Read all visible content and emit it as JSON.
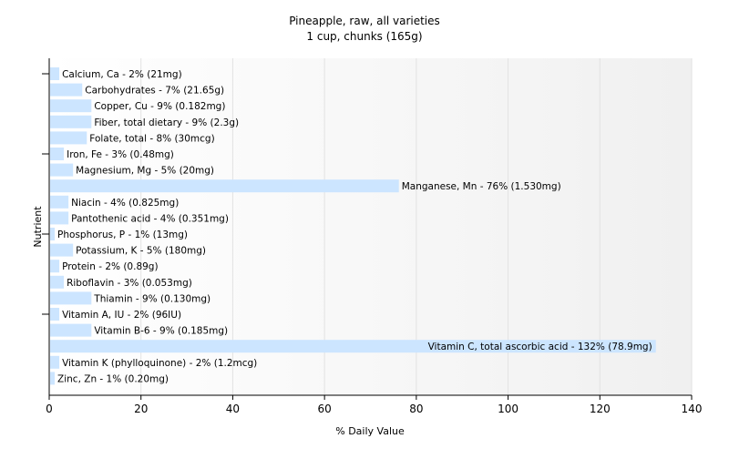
{
  "chart_data": {
    "type": "bar",
    "orientation": "horizontal",
    "title": "Pineapple, raw, all varieties",
    "subtitle": "1 cup, chunks (165g)",
    "xlabel": "% Daily Value",
    "ylabel": "Nutrient",
    "xlim": [
      0,
      140
    ],
    "xticks": [
      0,
      20,
      40,
      60,
      80,
      100,
      120,
      140
    ],
    "grid": "vertical",
    "bar_color": "#cce5ff",
    "categories": [
      "Calcium, Ca",
      "Carbohydrates",
      "Copper, Cu",
      "Fiber, total dietary",
      "Folate, total",
      "Iron, Fe",
      "Magnesium, Mg",
      "Manganese, Mn",
      "Niacin",
      "Pantothenic acid",
      "Phosphorus, P",
      "Potassium, K",
      "Protein",
      "Riboflavin",
      "Thiamin",
      "Vitamin A, IU",
      "Vitamin B-6",
      "Vitamin C, total ascorbic acid",
      "Vitamin K (phylloquinone)",
      "Zinc, Zn"
    ],
    "values": [
      2,
      7,
      9,
      9,
      8,
      3,
      5,
      76,
      4,
      4,
      1,
      5,
      2,
      3,
      9,
      2,
      9,
      132,
      2,
      1
    ],
    "labels": [
      "Calcium, Ca - 2% (21mg)",
      "Carbohydrates - 7% (21.65g)",
      "Copper, Cu - 9% (0.182mg)",
      "Fiber, total dietary - 9% (2.3g)",
      "Folate, total - 8% (30mcg)",
      "Iron, Fe - 3% (0.48mg)",
      "Magnesium, Mg - 5% (20mg)",
      "Manganese, Mn - 76% (1.530mg)",
      "Niacin - 4% (0.825mg)",
      "Pantothenic acid - 4% (0.351mg)",
      "Phosphorus, P - 1% (13mg)",
      "Potassium, K - 5% (180mg)",
      "Protein - 2% (0.89g)",
      "Riboflavin - 3% (0.053mg)",
      "Thiamin - 9% (0.130mg)",
      "Vitamin A, IU - 2% (96IU)",
      "Vitamin B-6 - 9% (0.185mg)",
      "Vitamin C, total ascorbic acid - 132% (78.9mg)",
      "Vitamin K (phylloquinone) - 2% (1.2mcg)",
      "Zinc, Zn - 1% (0.20mg)"
    ]
  }
}
